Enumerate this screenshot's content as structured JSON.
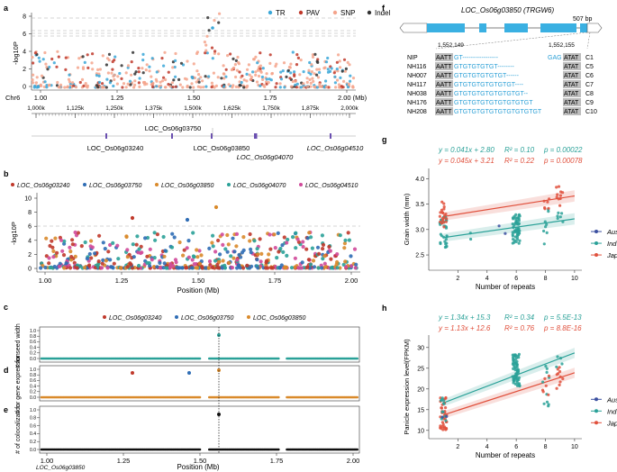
{
  "panels": {
    "a": {
      "letter": "a",
      "legend": [
        {
          "name": "TR",
          "color": "#3aa7d8"
        },
        {
          "name": "PAV",
          "color": "#c0392b"
        },
        {
          "name": "SNP",
          "color": "#f4a48c"
        },
        {
          "name": "Indel",
          "color": "#333333"
        }
      ],
      "ylabel": "-log10P",
      "yticks": [
        "0",
        "2",
        "4",
        "6",
        "8"
      ],
      "chrom": "Chr6",
      "xticks": [
        "1.00",
        "1.25",
        "1.50",
        "1.75",
        "2.00 (Mb)"
      ],
      "ruler_ticks": [
        "1,000k",
        "1,125k",
        "1,250k",
        "1,375k",
        "1,500k",
        "1,625k",
        "1,750k",
        "1,875k",
        "2,000k"
      ],
      "genes": [
        {
          "name": "LOC_Os06g03750",
          "italic": false
        },
        {
          "name": "LOC_Os06g03240",
          "italic": false
        },
        {
          "name": "LOC_Os06g03850",
          "italic": false
        },
        {
          "name": "LOC_Os06g04070",
          "italic": true
        },
        {
          "name": "LOC_Os06g04510",
          "italic": true
        }
      ]
    },
    "b": {
      "letter": "b",
      "legend": [
        {
          "name": "LOC_Os06g03240",
          "color": "#c0392b"
        },
        {
          "name": "LOC_Os06g03750",
          "color": "#2f6db5"
        },
        {
          "name": "LOC_Os06g03850",
          "color": "#d98a2b"
        },
        {
          "name": "LOC_Os06g04070",
          "color": "#2aa198"
        },
        {
          "name": "LOC_Os06g04510",
          "color": "#d04a9a"
        }
      ],
      "ylabel": "-log10P",
      "yticks": [
        "0",
        "2",
        "4",
        "6",
        "8",
        "10"
      ],
      "xticks": [
        "1.00",
        "1.25",
        "1.50",
        "1.75",
        "2.00"
      ],
      "xlabel": "Position (Mb)"
    },
    "c": {
      "letter": "c",
      "legend": [
        {
          "name": "LOC_Os06g03240",
          "color": "#c0392b"
        },
        {
          "name": "LOC_Os06g03750",
          "color": "#2f6db5"
        },
        {
          "name": "LOC_Os06g03850",
          "color": "#d98a2b"
        }
      ],
      "ylabel": "# for seed width",
      "yticks": [
        "0.0",
        "0.2",
        "0.4",
        "0.6",
        "0.8",
        "1.0"
      ]
    },
    "d": {
      "letter": "d",
      "ylabel": "# for gene expression",
      "yticks": [
        "0.0",
        "0.2",
        "0.4",
        "0.6",
        "0.8",
        "1.0"
      ]
    },
    "e": {
      "letter": "e",
      "ylabel": "# of colocalization",
      "yticks": [
        "0.0",
        "0.2",
        "0.4",
        "0.6",
        "0.8",
        "1.0"
      ],
      "xticks": [
        "1.00",
        "1.25",
        "1.50",
        "1.75",
        "2.00"
      ],
      "xlabel": "Position (Mb)",
      "bottom_gene": "LOC_Os06g03850"
    },
    "f": {
      "letter": "f",
      "gene_title": "LOC_Os06g03850 (TRGW6)",
      "bp_label": "507 bp",
      "pos_left": "1,552,149",
      "pos_right": "1,552,155",
      "alignment": [
        {
          "name": "NIP",
          "left": "AATT",
          "repeat": "GT-----------------",
          "right_gap": "GAG",
          "tail": "ATAT",
          "copies": "C1"
        },
        {
          "name": "NH116",
          "left": "AATT",
          "repeat": "GTGTGTGTGT--------",
          "right_gap": "",
          "tail": "ATAT",
          "copies": "C5"
        },
        {
          "name": "NH007",
          "left": "AATT",
          "repeat": "GTGTGTGTGTGT------",
          "right_gap": "",
          "tail": "ATAT",
          "copies": "C6"
        },
        {
          "name": "NH117",
          "left": "AATT",
          "repeat": "GTGTGTGTGTGTGT----",
          "right_gap": "",
          "tail": "ATAT",
          "copies": "C7"
        },
        {
          "name": "NH038",
          "left": "AATT",
          "repeat": "GTGTGTGTGTGTGTGT--",
          "right_gap": "",
          "tail": "ATAT",
          "copies": "C8"
        },
        {
          "name": "NH176",
          "left": "AATT",
          "repeat": "GTGTGTGTGTGTGTGTGT",
          "right_gap": "",
          "tail": "ATAT",
          "copies": "C9"
        },
        {
          "name": "NH208",
          "left": "AATT",
          "repeat": "GTGTGTGTGTGTGTGTGTGT",
          "right_gap": "",
          "tail": "ATAT",
          "copies": "C10"
        }
      ]
    },
    "g": {
      "letter": "g",
      "eq1": "y = 0.041x + 2.80",
      "r2_1": "R² = 0.10",
      "p1": "p = 0.00022",
      "eq2": "y = 0.045x + 3.21",
      "r2_2": "R² = 0.22",
      "p2": "p = 0.00078"
    },
    "h": {
      "letter": "h",
      "eq1": "y = 1.34x + 15.3",
      "r2_1": "R² = 0.34",
      "p1": "p = 5.5E-13",
      "eq2": "y = 1.13x + 12.6",
      "r2_2": "R² = 0.76",
      "p2": "p = 8.8E-16"
    }
  },
  "chart_data": [
    {
      "panel": "g",
      "type": "scatter",
      "xlabel": "Number of repeats",
      "ylabel": "Grain width (mm)",
      "xlim": [
        0,
        10.5
      ],
      "ylim": [
        2.2,
        4.2
      ],
      "xticks": [
        2,
        4,
        6,
        8,
        10
      ],
      "yticks": [
        2.5,
        3.0,
        3.5,
        4.0
      ],
      "legend": [
        {
          "name": "Aus",
          "color": "#3b4fa0"
        },
        {
          "name": "Ind",
          "color": "#2aa198"
        },
        {
          "name": "Jap",
          "color": "#e0503c"
        }
      ],
      "fits": [
        {
          "name": "Ind",
          "slope": 0.041,
          "intercept": 2.8,
          "x_range": [
            1,
            10
          ]
        },
        {
          "name": "Jap",
          "slope": 0.045,
          "intercept": 3.21,
          "x_range": [
            1,
            10
          ]
        }
      ]
    },
    {
      "panel": "h",
      "type": "scatter",
      "xlabel": "Number of repeats",
      "ylabel": "Panicle expression level(FPKM)",
      "xlim": [
        0,
        10.5
      ],
      "ylim": [
        8,
        33
      ],
      "xticks": [
        2,
        4,
        6,
        8,
        10
      ],
      "yticks": [
        10,
        15,
        20,
        25,
        30
      ],
      "legend": [
        {
          "name": "Aus",
          "color": "#3b4fa0"
        },
        {
          "name": "Ind",
          "color": "#2aa198"
        },
        {
          "name": "Jap",
          "color": "#e0503c"
        }
      ],
      "fits": [
        {
          "name": "Ind",
          "slope": 1.34,
          "intercept": 15.3,
          "x_range": [
            1,
            10
          ]
        },
        {
          "name": "Jap",
          "slope": 1.13,
          "intercept": 12.6,
          "x_range": [
            1,
            10
          ]
        }
      ]
    }
  ]
}
